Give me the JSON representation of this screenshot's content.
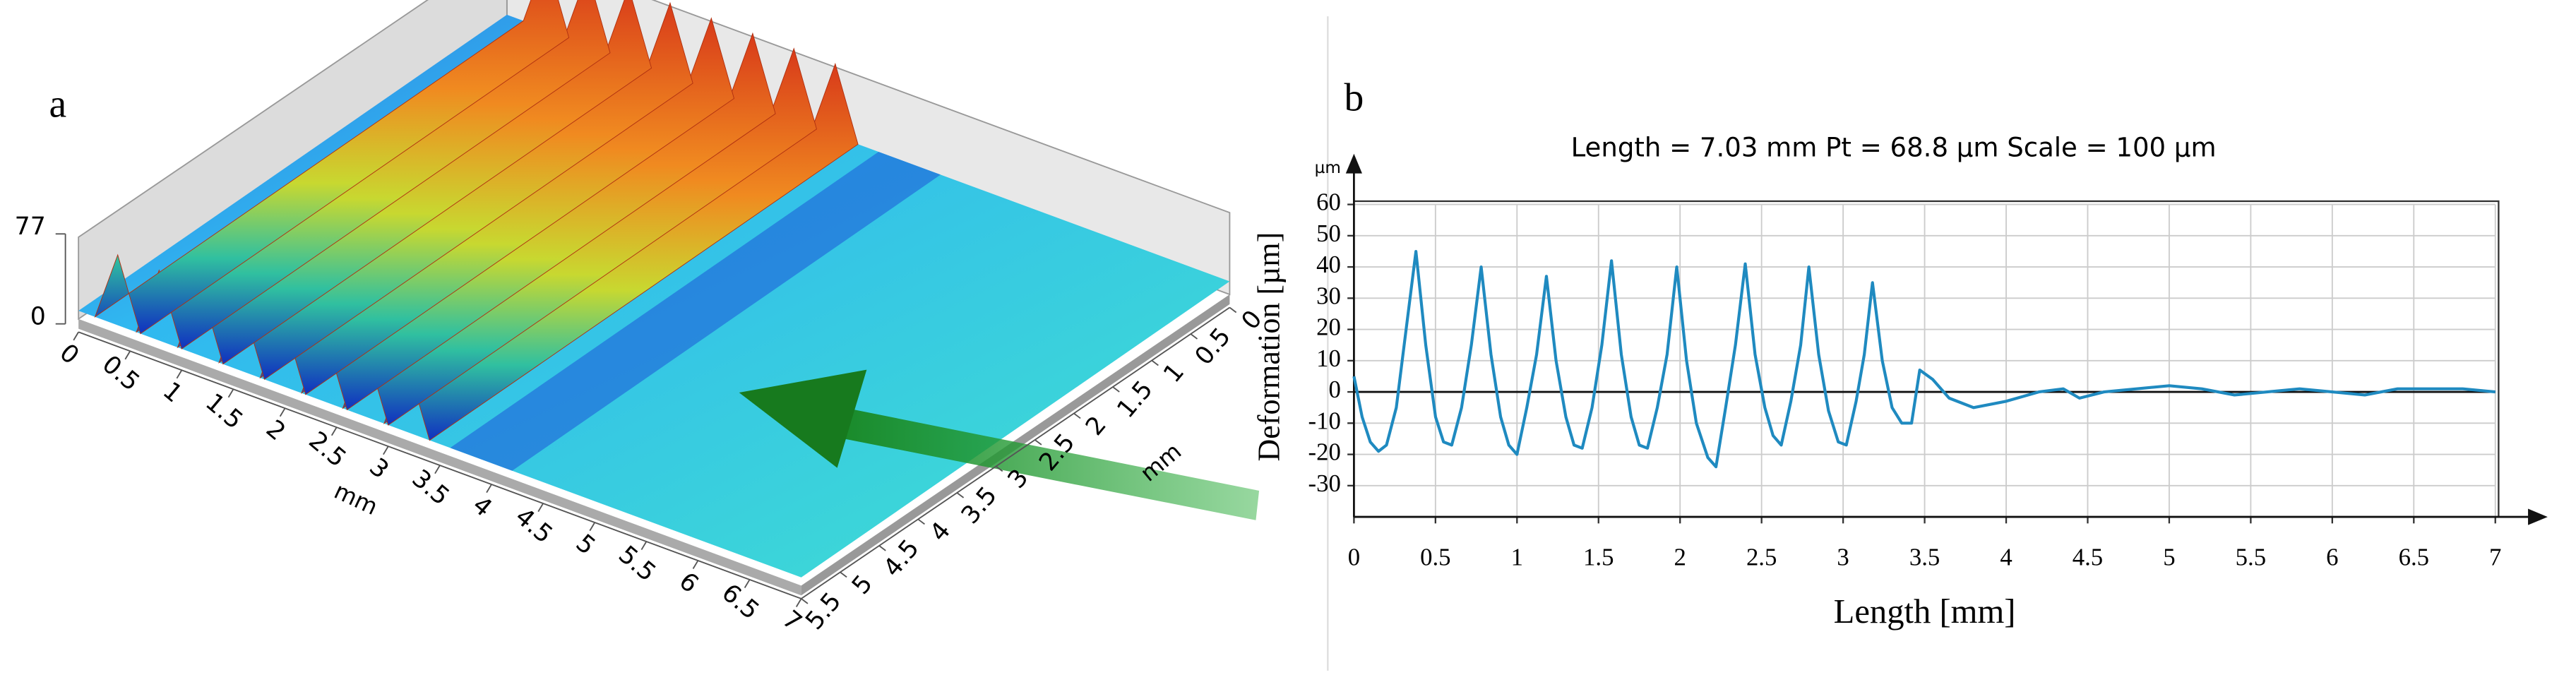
{
  "panel_a": {
    "label": "a",
    "z_ticks": [
      0,
      77
    ],
    "x_ticks": [
      0,
      0.5,
      1,
      1.5,
      2,
      2.5,
      3,
      3.5,
      4,
      4.5,
      5,
      5.5,
      6,
      6.5,
      7
    ],
    "x_unit": "mm",
    "y_ticks": [
      0,
      0.5,
      1,
      1.5,
      2,
      2.5,
      3,
      3.5,
      4,
      4.5,
      5,
      5.5
    ],
    "y_unit": "mm"
  },
  "chart_data": {
    "type": "line",
    "label": "b",
    "title": "Length = 7.03 mm Pt = 68.8 µm Scale = 100 µm",
    "y_unit": "µm",
    "xlabel": "Length [mm]",
    "ylabel": "Deformation  [µm]",
    "color": "#1f8ac0",
    "x": [
      0,
      0.05,
      0.1,
      0.15,
      0.2,
      0.26,
      0.32,
      0.38,
      0.44,
      0.5,
      0.55,
      0.6,
      0.66,
      0.72,
      0.78,
      0.84,
      0.9,
      0.95,
      1.0,
      1.06,
      1.12,
      1.18,
      1.24,
      1.3,
      1.35,
      1.4,
      1.46,
      1.52,
      1.58,
      1.64,
      1.7,
      1.75,
      1.8,
      1.86,
      1.92,
      1.98,
      2.04,
      2.1,
      2.17,
      2.22,
      2.28,
      2.34,
      2.4,
      2.46,
      2.52,
      2.57,
      2.62,
      2.68,
      2.74,
      2.79,
      2.85,
      2.91,
      2.97,
      3.02,
      3.08,
      3.13,
      3.18,
      3.24,
      3.3,
      3.36,
      3.42,
      3.47,
      3.55,
      3.65,
      3.8,
      4.0,
      4.2,
      4.35,
      4.45,
      4.6,
      4.8,
      5.0,
      5.2,
      5.4,
      5.6,
      5.8,
      6.0,
      6.2,
      6.4,
      6.6,
      6.8,
      7.0
    ],
    "values": [
      5,
      -8,
      -16,
      -19,
      -17,
      -5,
      20,
      45,
      15,
      -8,
      -16,
      -17,
      -5,
      15,
      40,
      12,
      -8,
      -17,
      -20,
      -5,
      12,
      37,
      10,
      -8,
      -17,
      -18,
      -5,
      15,
      42,
      12,
      -8,
      -17,
      -18,
      -5,
      12,
      40,
      10,
      -10,
      -21,
      -24,
      -5,
      15,
      41,
      12,
      -5,
      -14,
      -17,
      -3,
      15,
      40,
      12,
      -6,
      -16,
      -17,
      -3,
      12,
      35,
      10,
      -5,
      -10,
      -10,
      7,
      4,
      -2,
      -5,
      -3,
      0,
      1,
      -2,
      0,
      1,
      2,
      1,
      -1,
      0,
      1,
      0,
      -1,
      1,
      1,
      1,
      0
    ],
    "xlim": [
      0,
      7
    ],
    "ylim": [
      -40,
      60
    ],
    "xticks": [
      0,
      0.5,
      1,
      1.5,
      2,
      2.5,
      3,
      3.5,
      4,
      4.5,
      5,
      5.5,
      6,
      6.5,
      7
    ],
    "yticks": [
      -30,
      -20,
      -10,
      0,
      10,
      20,
      30,
      40,
      50,
      60
    ],
    "grid": true,
    "zero_line": true
  }
}
